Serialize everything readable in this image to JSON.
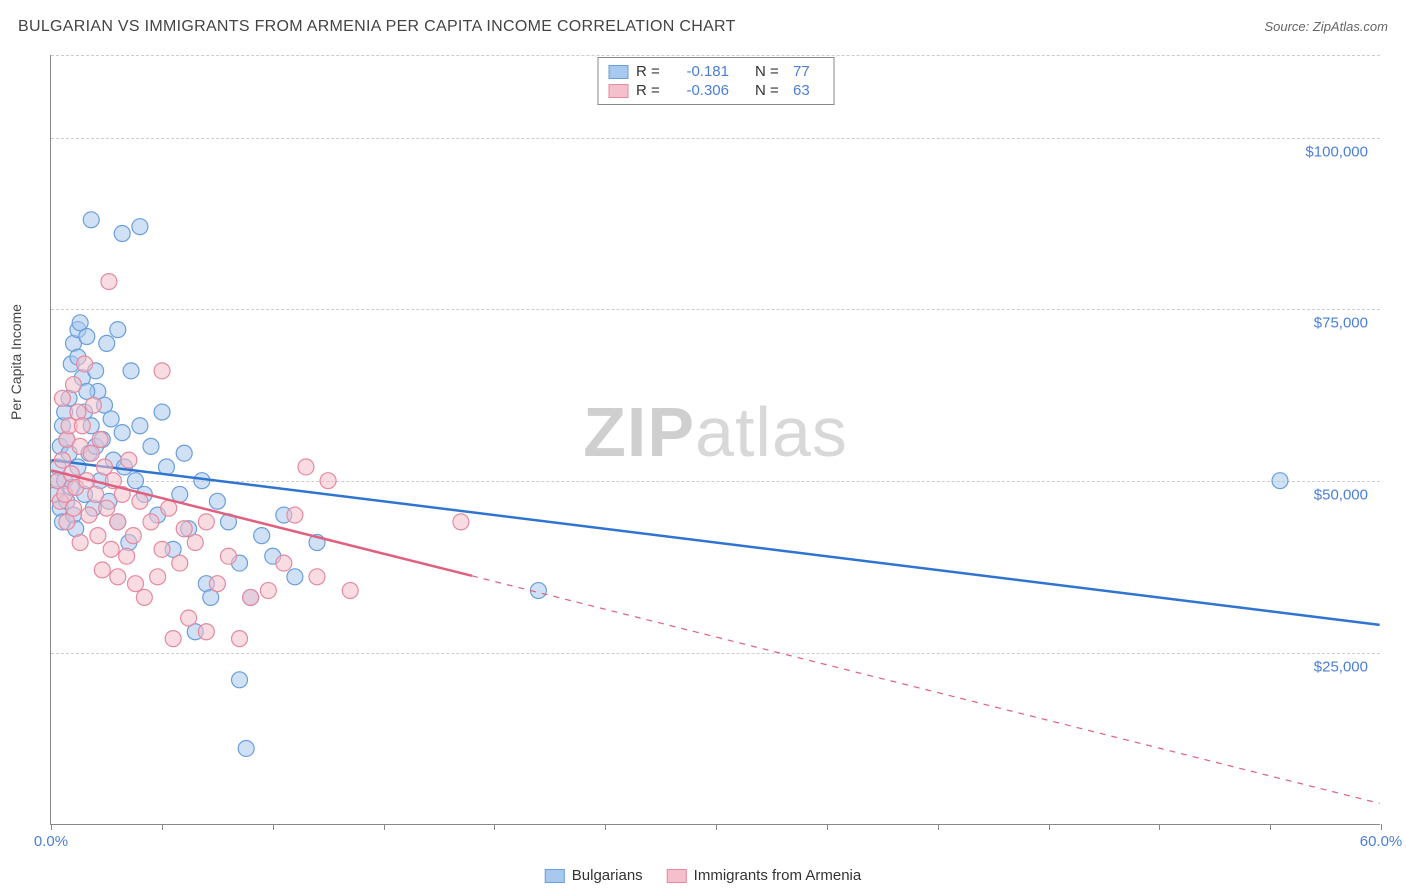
{
  "title": "BULGARIAN VS IMMIGRANTS FROM ARMENIA PER CAPITA INCOME CORRELATION CHART",
  "source_prefix": "Source: ",
  "source_name": "ZipAtlas.com",
  "watermark_a": "ZIP",
  "watermark_b": "atlas",
  "y_axis_label": "Per Capita Income",
  "chart": {
    "type": "scatter-with-regression",
    "xlim": [
      0,
      60
    ],
    "ylim": [
      0,
      112000
    ],
    "x_tick_positions": [
      0,
      5,
      10,
      15,
      20,
      25,
      30,
      35,
      40,
      45,
      50,
      55,
      60
    ],
    "x_tick_labels": {
      "0": "0.0%",
      "60": "60.0%"
    },
    "y_gridlines": [
      25000,
      50000,
      75000,
      100000,
      112000
    ],
    "y_tick_labels": {
      "25000": "$25,000",
      "50000": "$50,000",
      "75000": "$75,000",
      "100000": "$100,000"
    },
    "background_color": "#ffffff",
    "grid_color": "#cccccc",
    "axis_color": "#888888",
    "marker_radius": 8,
    "marker_opacity": 0.55,
    "marker_stroke_width": 1.2
  },
  "series": [
    {
      "key": "bulgarians",
      "label": "Bulgarians",
      "color_fill": "#a9c8ee",
      "color_stroke": "#6a9edc",
      "line_color": "#2f74d0",
      "R_label": "R =",
      "R": "-0.181",
      "N_label": "N =",
      "N": "77",
      "regression": {
        "x1": 0,
        "y1": 53000,
        "x2": 60,
        "y2": 29000,
        "solid_to_x": 60
      },
      "points": [
        [
          0.2,
          48000
        ],
        [
          0.3,
          50000
        ],
        [
          0.3,
          52000
        ],
        [
          0.4,
          46000
        ],
        [
          0.4,
          55000
        ],
        [
          0.5,
          58000
        ],
        [
          0.5,
          44000
        ],
        [
          0.6,
          60000
        ],
        [
          0.6,
          50000
        ],
        [
          0.7,
          56000
        ],
        [
          0.7,
          47000
        ],
        [
          0.8,
          62000
        ],
        [
          0.8,
          54000
        ],
        [
          0.9,
          67000
        ],
        [
          0.9,
          49000
        ],
        [
          1.0,
          70000
        ],
        [
          1.0,
          45000
        ],
        [
          1.1,
          43000
        ],
        [
          1.2,
          72000
        ],
        [
          1.2,
          52000
        ],
        [
          1.3,
          73000
        ],
        [
          1.4,
          65000
        ],
        [
          1.5,
          60000
        ],
        [
          1.5,
          48000
        ],
        [
          1.6,
          71000
        ],
        [
          1.7,
          54000
        ],
        [
          1.8,
          58000
        ],
        [
          1.8,
          88000
        ],
        [
          1.9,
          46000
        ],
        [
          2.0,
          55000
        ],
        [
          2.1,
          63000
        ],
        [
          2.2,
          50000
        ],
        [
          2.4,
          61000
        ],
        [
          2.5,
          70000
        ],
        [
          2.6,
          47000
        ],
        [
          2.8,
          53000
        ],
        [
          3.0,
          72000
        ],
        [
          3.0,
          44000
        ],
        [
          3.2,
          86000
        ],
        [
          3.2,
          57000
        ],
        [
          3.5,
          41000
        ],
        [
          3.6,
          66000
        ],
        [
          3.8,
          50000
        ],
        [
          4.0,
          58000
        ],
        [
          4.0,
          87000
        ],
        [
          4.2,
          48000
        ],
        [
          4.5,
          55000
        ],
        [
          4.8,
          45000
        ],
        [
          5.0,
          60000
        ],
        [
          5.2,
          52000
        ],
        [
          5.5,
          40000
        ],
        [
          5.8,
          48000
        ],
        [
          6.0,
          54000
        ],
        [
          6.2,
          43000
        ],
        [
          6.5,
          28000
        ],
        [
          6.8,
          50000
        ],
        [
          7.0,
          35000
        ],
        [
          7.2,
          33000
        ],
        [
          7.5,
          47000
        ],
        [
          8.0,
          44000
        ],
        [
          8.5,
          38000
        ],
        [
          8.5,
          21000
        ],
        [
          8.8,
          11000
        ],
        [
          9.0,
          33000
        ],
        [
          9.5,
          42000
        ],
        [
          10.0,
          39000
        ],
        [
          10.5,
          45000
        ],
        [
          11.0,
          36000
        ],
        [
          12.0,
          41000
        ],
        [
          22.0,
          34000
        ],
        [
          55.5,
          50000
        ],
        [
          1.2,
          68000
        ],
        [
          1.6,
          63000
        ],
        [
          2.0,
          66000
        ],
        [
          2.3,
          56000
        ],
        [
          2.7,
          59000
        ],
        [
          3.3,
          52000
        ]
      ]
    },
    {
      "key": "armenia",
      "label": "Immigrants from Armenia",
      "color_fill": "#f4c0cb",
      "color_stroke": "#e48aa0",
      "line_color": "#e06080",
      "R_label": "R =",
      "R": "-0.306",
      "N_label": "N =",
      "N": "63",
      "regression": {
        "x1": 0,
        "y1": 51500,
        "x2": 60,
        "y2": 3000,
        "solid_to_x": 19
      },
      "points": [
        [
          0.3,
          50000
        ],
        [
          0.4,
          47000
        ],
        [
          0.5,
          53000
        ],
        [
          0.5,
          62000
        ],
        [
          0.6,
          48000
        ],
        [
          0.7,
          56000
        ],
        [
          0.7,
          44000
        ],
        [
          0.8,
          58000
        ],
        [
          0.9,
          51000
        ],
        [
          1.0,
          64000
        ],
        [
          1.0,
          46000
        ],
        [
          1.1,
          49000
        ],
        [
          1.2,
          60000
        ],
        [
          1.3,
          55000
        ],
        [
          1.3,
          41000
        ],
        [
          1.4,
          58000
        ],
        [
          1.5,
          67000
        ],
        [
          1.6,
          50000
        ],
        [
          1.7,
          45000
        ],
        [
          1.8,
          54000
        ],
        [
          1.9,
          61000
        ],
        [
          2.0,
          48000
        ],
        [
          2.1,
          42000
        ],
        [
          2.2,
          56000
        ],
        [
          2.3,
          37000
        ],
        [
          2.4,
          52000
        ],
        [
          2.5,
          46000
        ],
        [
          2.6,
          79000
        ],
        [
          2.7,
          40000
        ],
        [
          2.8,
          50000
        ],
        [
          3.0,
          44000
        ],
        [
          3.0,
          36000
        ],
        [
          3.2,
          48000
        ],
        [
          3.4,
          39000
        ],
        [
          3.5,
          53000
        ],
        [
          3.7,
          42000
        ],
        [
          3.8,
          35000
        ],
        [
          4.0,
          47000
        ],
        [
          4.2,
          33000
        ],
        [
          4.5,
          44000
        ],
        [
          4.8,
          36000
        ],
        [
          5.0,
          66000
        ],
        [
          5.0,
          40000
        ],
        [
          5.3,
          46000
        ],
        [
          5.5,
          27000
        ],
        [
          5.8,
          38000
        ],
        [
          6.0,
          43000
        ],
        [
          6.2,
          30000
        ],
        [
          6.5,
          41000
        ],
        [
          7.0,
          44000
        ],
        [
          7.0,
          28000
        ],
        [
          7.5,
          35000
        ],
        [
          8.0,
          39000
        ],
        [
          8.5,
          27000
        ],
        [
          9.0,
          33000
        ],
        [
          9.8,
          34000
        ],
        [
          10.5,
          38000
        ],
        [
          11.0,
          45000
        ],
        [
          11.5,
          52000
        ],
        [
          12.0,
          36000
        ],
        [
          12.5,
          50000
        ],
        [
          13.5,
          34000
        ],
        [
          18.5,
          44000
        ]
      ]
    }
  ]
}
